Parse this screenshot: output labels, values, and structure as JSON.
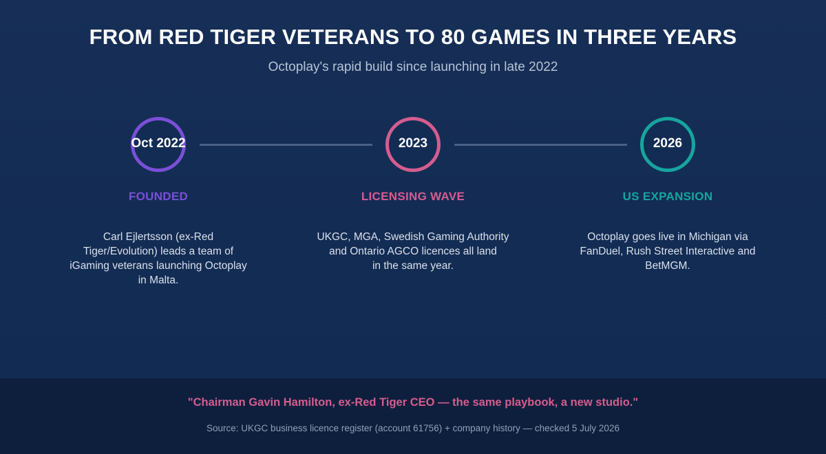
{
  "header": {
    "title": "FROM RED TIGER VETERANS TO 80 GAMES IN THREE YEARS",
    "subtitle": "Octoplay's rapid build since launching in late 2022"
  },
  "colors": {
    "background": "#142b52",
    "footer_background": "#0e1f3d",
    "connector": "#4a6084",
    "founded": "#7b4fd8",
    "licensing": "#d45d8e",
    "expansion": "#17a59e"
  },
  "timeline": [
    {
      "date": "Oct 2022",
      "phase": "FOUNDED",
      "color": "#7b4fd8",
      "description_lines": [
        "Carl Ejlertsson (ex-Red",
        "Tiger/Evolution) leads a team of",
        "iGaming veterans launching Octoplay",
        "in Malta."
      ]
    },
    {
      "date": "2023",
      "phase": "LICENSING WAVE",
      "color": "#d45d8e",
      "description_lines": [
        "UKGC, MGA, Swedish Gaming Authority",
        "and Ontario AGCO licences all land",
        "in the same year."
      ]
    },
    {
      "date": "2026",
      "phase": "US EXPANSION",
      "color": "#17a59e",
      "description_lines": [
        "Octoplay goes live in Michigan via",
        "FanDuel, Rush Street Interactive and",
        "BetMGM."
      ]
    }
  ],
  "footer": {
    "quote": "\"Chairman Gavin Hamilton, ex-Red Tiger CEO — the same playbook, a new studio.\"",
    "source": "Source: UKGC business licence register (account 61756) + company history — checked 5 July 2026"
  }
}
